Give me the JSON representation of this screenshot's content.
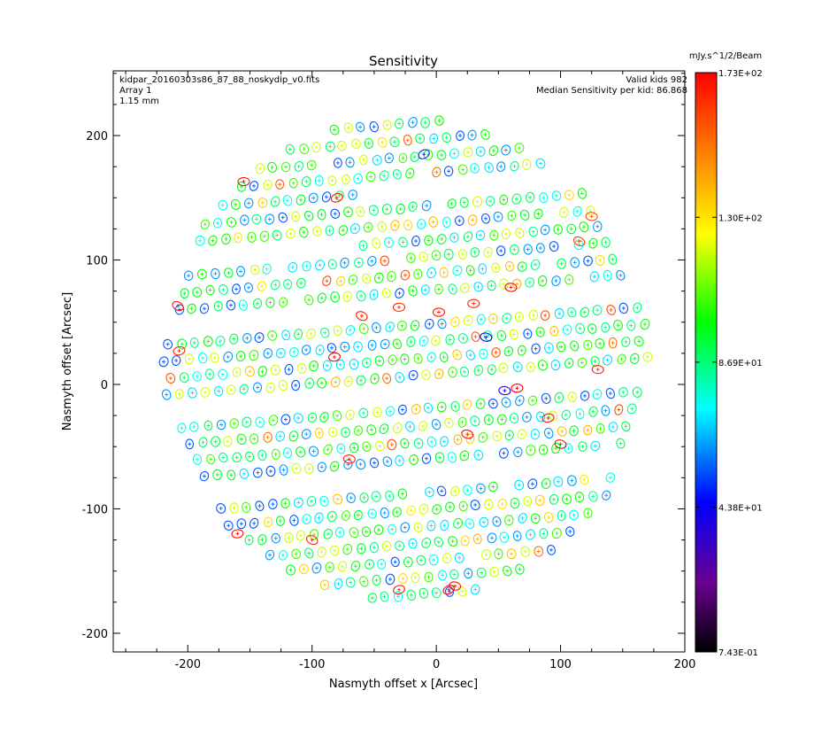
{
  "chart_data": {
    "type": "scatter",
    "title": "Sensitivity",
    "xlabel": "Nasmyth offset x [Arcsec]",
    "ylabel": "Nasmyth offset [Arcsec]",
    "xlim": [
      -260,
      200
    ],
    "ylim": [
      -215,
      252
    ],
    "x_ticks": [
      -200,
      -100,
      0,
      100,
      200
    ],
    "y_ticks": [
      -200,
      -100,
      0,
      100,
      200
    ],
    "annotations_left": [
      "kidpar_20160303s86_87_88_noskydip_v0.fits",
      "Array 1",
      "1.15 mm"
    ],
    "annotations_right": [
      "Valid kids 982",
      "Median Sensitivity per kid: 86.868"
    ],
    "colorbar": {
      "title": "mJy.s^1/2/Beam",
      "min": 0.743,
      "max": 173,
      "tick_labels": [
        "1.73E+02",
        "1.30E+02",
        "8.69E+01",
        "4.38E+01",
        "7.43E-01"
      ],
      "tick_values": [
        173,
        130,
        86.9,
        43.8,
        0.743
      ]
    },
    "grid": false,
    "detector_layout": {
      "note": "kid positions sampled on the focal-plane disk",
      "center": [
        -25,
        20
      ],
      "radius": 195,
      "row_angle_deg": 4.5,
      "row_spacing": 13.5,
      "column_spacing": 10.5,
      "gap_rows": [
        {
          "x_from": -220,
          "x_to": -60,
          "y": 115
        },
        {
          "x_from": -60,
          "x_to": 160,
          "y": 158
        },
        {
          "x_from": -230,
          "x_to": 170,
          "y": 62
        },
        {
          "x_from": -230,
          "x_to": 170,
          "y": -2
        },
        {
          "x_from": -230,
          "x_to": 170,
          "y": -72
        }
      ],
      "count": 982
    },
    "highlighted_kids": [
      {
        "x": -207,
        "y": 27,
        "s": 165
      },
      {
        "x": -208,
        "y": 63,
        "s": 168
      },
      {
        "x": -155,
        "y": 163,
        "s": 170
      },
      {
        "x": -80,
        "y": 150,
        "s": 168
      },
      {
        "x": -82,
        "y": 22,
        "s": 172
      },
      {
        "x": -60,
        "y": 55,
        "s": 168
      },
      {
        "x": -30,
        "y": 62,
        "s": 166
      },
      {
        "x": 2,
        "y": 58,
        "s": 170
      },
      {
        "x": 30,
        "y": 65,
        "s": 168
      },
      {
        "x": 60,
        "y": 78,
        "s": 172
      },
      {
        "x": 65,
        "y": -3,
        "s": 173
      },
      {
        "x": 55,
        "y": -5,
        "s": 40
      },
      {
        "x": 100,
        "y": -48,
        "s": 172
      },
      {
        "x": 90,
        "y": -27,
        "s": 170
      },
      {
        "x": 130,
        "y": 12,
        "s": 165
      },
      {
        "x": 115,
        "y": 115,
        "s": 160
      },
      {
        "x": -160,
        "y": -120,
        "s": 170
      },
      {
        "x": -100,
        "y": -125,
        "s": 165
      },
      {
        "x": -30,
        "y": -165,
        "s": 168
      },
      {
        "x": 10,
        "y": -165,
        "s": 172
      },
      {
        "x": 15,
        "y": -162,
        "s": 170
      },
      {
        "x": -70,
        "y": -60,
        "s": 166
      },
      {
        "x": 25,
        "y": -40,
        "s": 170
      },
      {
        "x": 125,
        "y": 135,
        "s": 158
      },
      {
        "x": 40,
        "y": 38,
        "s": 45
      },
      {
        "x": -10,
        "y": 185,
        "s": 50
      }
    ]
  }
}
